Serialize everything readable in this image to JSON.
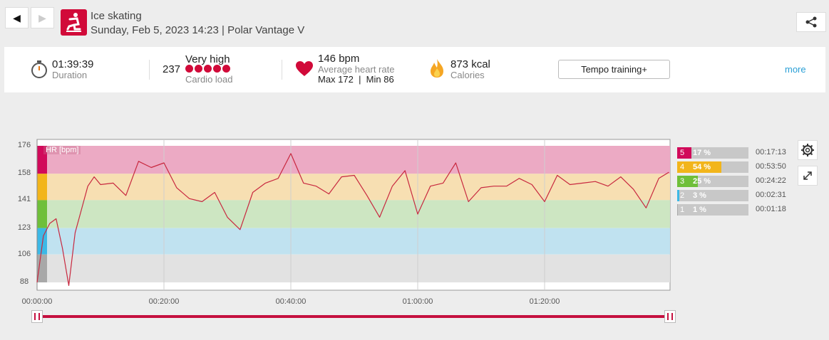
{
  "header": {
    "sport": "Ice skating",
    "subtitle": "Sunday, Feb 5, 2023 14:23 | Polar Vantage V"
  },
  "summary": {
    "duration_value": "01:39:39",
    "duration_label": "Duration",
    "cardio_value": "237",
    "cardio_level": "Very high",
    "cardio_label": "Cardio load",
    "cardio_balls": 5,
    "hr_value": "146 bpm",
    "hr_label": "Average heart rate",
    "hr_maxmin": "Max 172  |  Min 86",
    "kcal_value": "873 kcal",
    "kcal_label": "Calories",
    "training_button": "Tempo training+",
    "more_link": "more"
  },
  "chart_data": {
    "type": "line",
    "series_label": "HR [bpm]",
    "y_ticks": [
      "176",
      "158",
      "141",
      "123",
      "106",
      "88"
    ],
    "ylim": [
      86,
      176
    ],
    "x_ticks": [
      "00:00:00",
      "00:20:00",
      "00:40:00",
      "01:00:00",
      "01:20:00"
    ],
    "x_minutes_range": [
      0,
      99.65
    ],
    "zones": [
      {
        "zone": "5",
        "pct": "17 %",
        "time": "00:17:13",
        "fraction": 0.17,
        "color": "#d10a5a"
      },
      {
        "zone": "4",
        "pct": "54 %",
        "time": "00:53:50",
        "fraction": 0.54,
        "color": "#f2b51b"
      },
      {
        "zone": "3",
        "pct": "25 %",
        "time": "00:24:22",
        "fraction": 0.25,
        "color": "#6fbf3a"
      },
      {
        "zone": "2",
        "pct": "3 %",
        "time": "00:02:31",
        "fraction": 0.03,
        "color": "#3cb8e6"
      },
      {
        "zone": "1",
        "pct": "1 %",
        "time": "00:01:18",
        "fraction": 0.01,
        "color": "#a8a8a8"
      }
    ],
    "hr_samples_min": [
      0,
      1,
      2,
      3,
      4,
      5,
      6,
      7,
      8,
      9,
      10,
      12,
      14,
      16,
      18,
      20,
      22,
      24,
      26,
      28,
      30,
      32,
      34,
      36,
      38,
      40,
      42,
      44,
      46,
      48,
      50,
      52,
      54,
      56,
      58,
      60,
      62,
      64,
      66,
      68,
      70,
      72,
      74,
      76,
      78,
      80,
      82,
      84,
      86,
      88,
      90,
      92,
      94,
      96,
      98,
      99.6
    ],
    "hr_samples_bpm": [
      88,
      118,
      126,
      129,
      110,
      86,
      120,
      135,
      150,
      156,
      151,
      152,
      144,
      166,
      162,
      165,
      149,
      142,
      140,
      146,
      130,
      122,
      146,
      152,
      155,
      171,
      152,
      150,
      145,
      156,
      157,
      144,
      130,
      150,
      160,
      132,
      150,
      152,
      165,
      140,
      149,
      150,
      150,
      155,
      151,
      140,
      157,
      151,
      152,
      153,
      150,
      156,
      148,
      136,
      155,
      159
    ]
  }
}
